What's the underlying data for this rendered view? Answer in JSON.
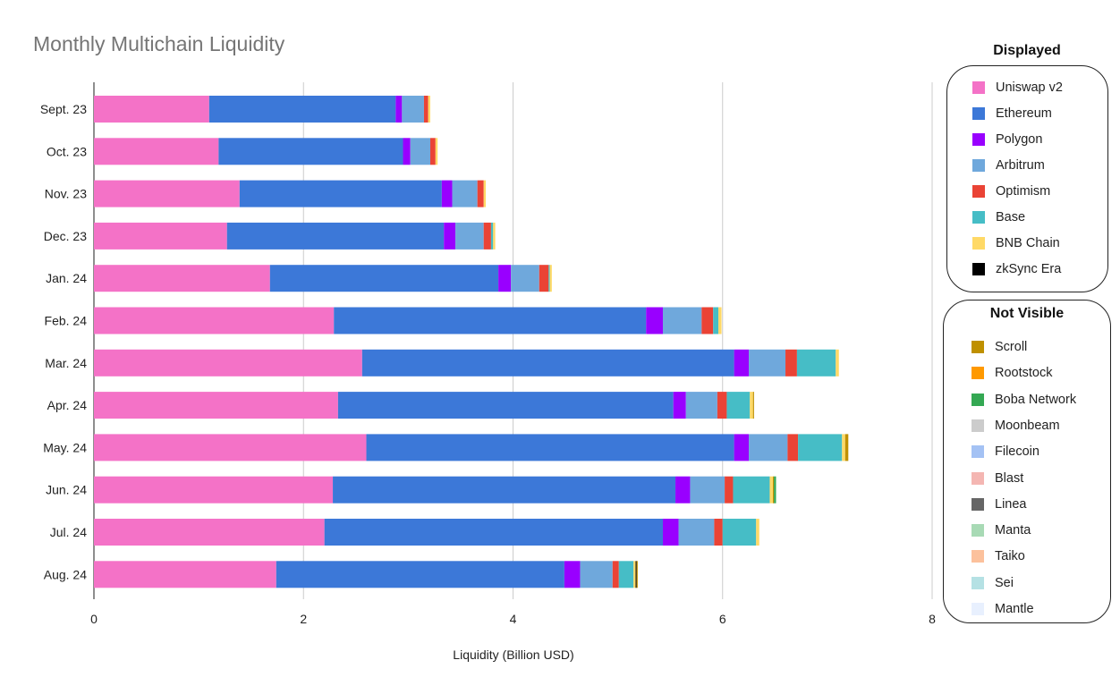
{
  "chart_data": {
    "type": "bar",
    "orientation": "horizontal",
    "stacked": true,
    "title": "Monthly Multichain Liquidity",
    "xlabel": "Liquidity (Billion USD)",
    "ylabel": "",
    "xlim": [
      0,
      8
    ],
    "xticks": [
      0,
      2,
      4,
      6,
      8
    ],
    "grid": true,
    "categories": [
      "Sept. 23",
      "Oct. 23",
      "Nov. 23",
      "Dec. 23",
      "Jan. 24",
      "Feb. 24",
      "Mar. 24",
      "Apr. 24",
      "May. 24",
      "Jun. 24",
      "Jul. 24",
      "Aug. 24"
    ],
    "series": [
      {
        "name": "Uniswap v2",
        "color": "#f472c7",
        "values": [
          1.1,
          1.19,
          1.39,
          1.27,
          1.68,
          2.29,
          2.56,
          2.33,
          2.6,
          2.28,
          2.2,
          1.74
        ]
      },
      {
        "name": "Ethereum",
        "color": "#3c78d8",
        "values": [
          1.78,
          1.76,
          1.93,
          2.07,
          2.18,
          2.98,
          3.55,
          3.2,
          3.51,
          3.27,
          3.23,
          2.75
        ]
      },
      {
        "name": "Polygon",
        "color": "#9900ff",
        "values": [
          0.06,
          0.07,
          0.1,
          0.11,
          0.12,
          0.16,
          0.14,
          0.12,
          0.14,
          0.14,
          0.15,
          0.15
        ]
      },
      {
        "name": "Arbitrum",
        "color": "#6fa8dc",
        "values": [
          0.21,
          0.19,
          0.24,
          0.27,
          0.27,
          0.37,
          0.35,
          0.3,
          0.37,
          0.33,
          0.34,
          0.31
        ]
      },
      {
        "name": "Optimism",
        "color": "#ea4335",
        "values": [
          0.04,
          0.05,
          0.06,
          0.07,
          0.09,
          0.11,
          0.11,
          0.09,
          0.1,
          0.08,
          0.08,
          0.06
        ]
      },
      {
        "name": "Base",
        "color": "#46bdc6",
        "values": [
          0.0,
          0.0,
          0.0,
          0.02,
          0.01,
          0.05,
          0.37,
          0.22,
          0.42,
          0.35,
          0.32,
          0.14
        ]
      },
      {
        "name": "BNB Chain",
        "color": "#ffd966",
        "values": [
          0.02,
          0.02,
          0.02,
          0.02,
          0.02,
          0.03,
          0.03,
          0.03,
          0.03,
          0.03,
          0.03,
          0.02
        ]
      },
      {
        "name": "zkSync Era",
        "color": "#000000",
        "values": [
          0.0,
          0.0,
          0.0,
          0.0,
          0.0,
          0.0,
          0.0,
          0.0,
          0.0,
          0.0,
          0.0,
          0.01
        ]
      },
      {
        "name": "Scroll",
        "color": "#bf9000",
        "values": [
          0.0,
          0.0,
          0.0,
          0.0,
          0.0,
          0.0,
          0.0,
          0.01,
          0.03,
          0.01,
          0.0,
          0.01
        ]
      },
      {
        "name": "Rootstock",
        "color": "#ff9900",
        "values": [
          0,
          0,
          0,
          0,
          0,
          0,
          0,
          0,
          0,
          0,
          0,
          0
        ]
      },
      {
        "name": "Boba Network",
        "color": "#34a853",
        "values": [
          0.0,
          0.0,
          0.0,
          0.0,
          0.0,
          0.0,
          0.0,
          0.0,
          0.0,
          0.02,
          0.0,
          0.0
        ]
      },
      {
        "name": "Moonbeam",
        "color": "#cccccc",
        "values": [
          0,
          0,
          0,
          0,
          0,
          0,
          0,
          0,
          0,
          0,
          0,
          0
        ]
      },
      {
        "name": "Filecoin",
        "color": "#a4c2f4",
        "values": [
          0,
          0,
          0,
          0,
          0,
          0,
          0,
          0,
          0,
          0,
          0,
          0
        ]
      },
      {
        "name": "Blast",
        "color": "#f4b6b2",
        "values": [
          0,
          0,
          0,
          0,
          0,
          0,
          0,
          0,
          0,
          0,
          0,
          0
        ]
      },
      {
        "name": "Linea",
        "color": "#666666",
        "values": [
          0,
          0,
          0,
          0,
          0,
          0,
          0,
          0,
          0,
          0,
          0,
          0
        ]
      },
      {
        "name": "Manta",
        "color": "#a8dab5",
        "values": [
          0,
          0,
          0,
          0,
          0,
          0,
          0,
          0,
          0,
          0,
          0,
          0
        ]
      },
      {
        "name": "Taiko",
        "color": "#fcc19c",
        "values": [
          0,
          0,
          0,
          0,
          0,
          0,
          0,
          0,
          0,
          0,
          0,
          0
        ]
      },
      {
        "name": "Sei",
        "color": "#b5e1e4",
        "values": [
          0,
          0,
          0,
          0,
          0,
          0,
          0,
          0,
          0,
          0,
          0,
          0
        ]
      },
      {
        "name": "Mantle",
        "color": "#e8f0fe",
        "values": [
          0,
          0,
          0,
          0,
          0,
          0,
          0,
          0,
          0,
          0,
          0,
          0
        ]
      }
    ]
  },
  "legend": {
    "displayed": {
      "heading": "Displayed",
      "items": [
        {
          "label": "Uniswap v2",
          "color": "#f472c7"
        },
        {
          "label": "Ethereum",
          "color": "#3c78d8"
        },
        {
          "label": "Polygon",
          "color": "#9900ff"
        },
        {
          "label": "Arbitrum",
          "color": "#6fa8dc"
        },
        {
          "label": "Optimism",
          "color": "#ea4335"
        },
        {
          "label": "Base",
          "color": "#46bdc6"
        },
        {
          "label": "BNB Chain",
          "color": "#ffd966"
        },
        {
          "label": "zkSync Era",
          "color": "#000000"
        }
      ]
    },
    "not_visible": {
      "heading": "Not Visible",
      "items": [
        {
          "label": "Scroll",
          "color": "#bf9000"
        },
        {
          "label": "Rootstock",
          "color": "#ff9900"
        },
        {
          "label": "Boba Network",
          "color": "#34a853"
        },
        {
          "label": "Moonbeam",
          "color": "#cccccc"
        },
        {
          "label": "Filecoin",
          "color": "#a4c2f4"
        },
        {
          "label": "Blast",
          "color": "#f4b6b2"
        },
        {
          "label": "Linea",
          "color": "#666666"
        },
        {
          "label": "Manta",
          "color": "#a8dab5"
        },
        {
          "label": "Taiko",
          "color": "#fcc19c"
        },
        {
          "label": "Sei",
          "color": "#b5e1e4"
        },
        {
          "label": "Mantle",
          "color": "#e8f0fe"
        }
      ]
    }
  }
}
